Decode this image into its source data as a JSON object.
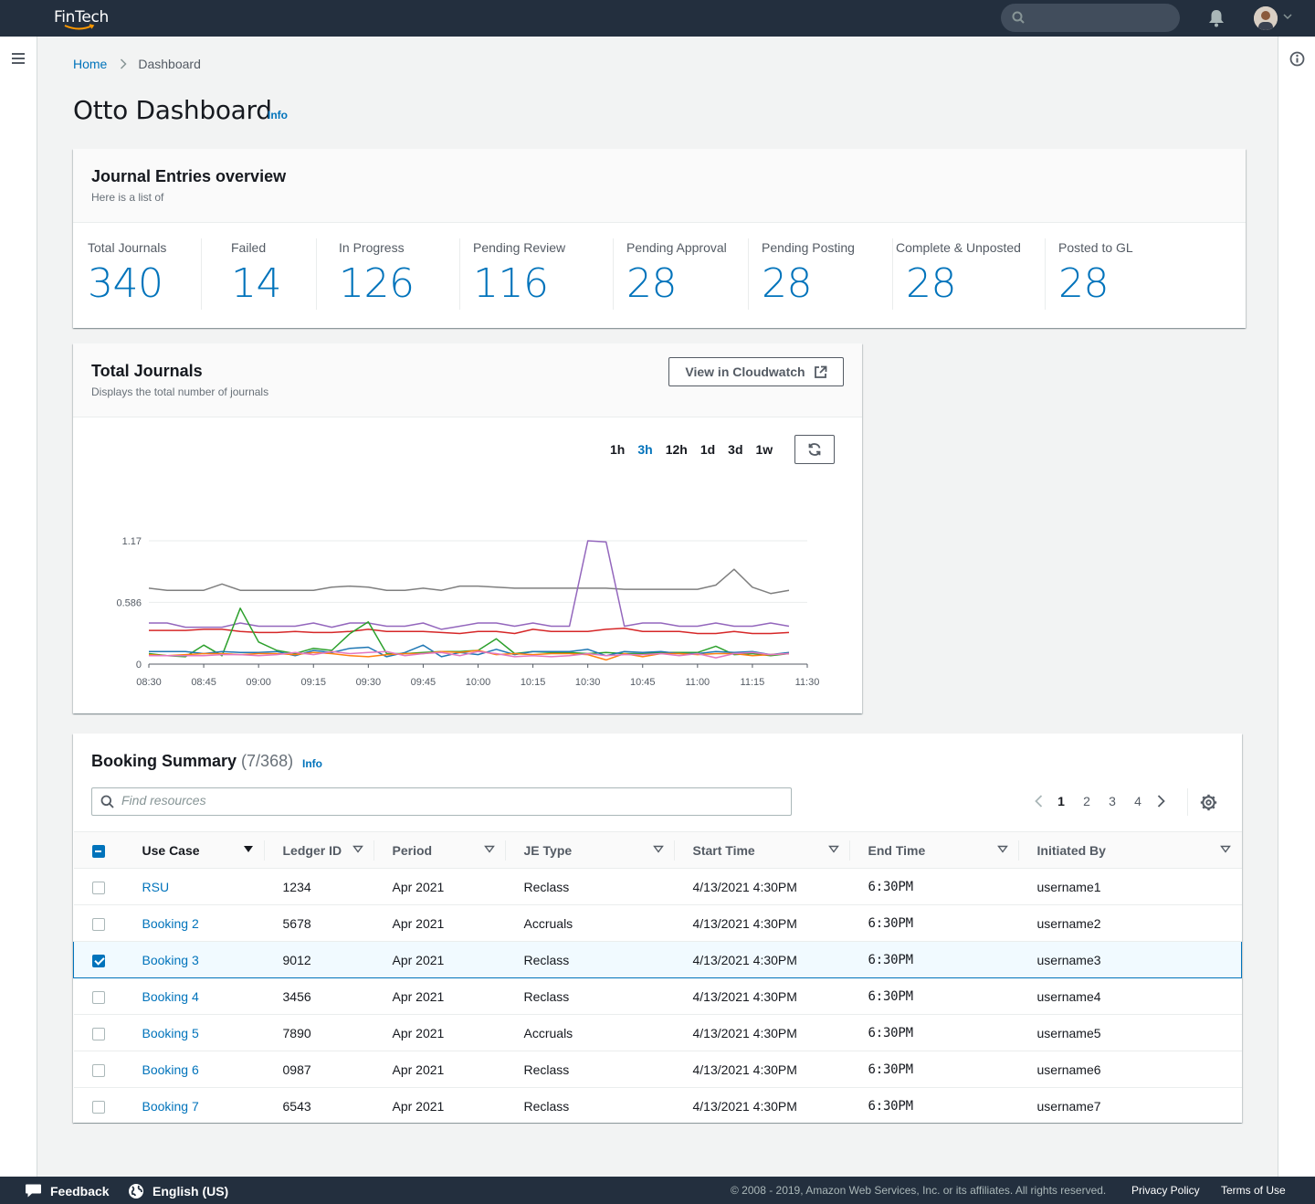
{
  "app": {
    "logo": "FinTech"
  },
  "breadcrumb": {
    "home": "Home",
    "current": "Dashboard"
  },
  "page": {
    "title": "Otto Dashboard",
    "info": "Info"
  },
  "overview": {
    "title": "Journal Entries overview",
    "description": "Here is a list of",
    "stats": [
      {
        "label": "Total Journals",
        "value": "340"
      },
      {
        "label": "Failed",
        "value": "14"
      },
      {
        "label": "In Progress",
        "value": "126"
      },
      {
        "label": "Pending Review",
        "value": "116"
      },
      {
        "label": "Pending Approval",
        "value": "28"
      },
      {
        "label": "Pending Posting",
        "value": "28"
      },
      {
        "label": "Complete & Unposted",
        "value": "28"
      },
      {
        "label": "Posted to GL",
        "value": "28"
      }
    ]
  },
  "chart_card": {
    "title": "Total Journals",
    "description": "Displays the total number of journals",
    "cloudwatch_button": "View in Cloudwatch",
    "ranges": [
      "1h",
      "3h",
      "12h",
      "1d",
      "3d",
      "1w"
    ],
    "active_range": "3h"
  },
  "chart_data": {
    "type": "line",
    "x": [
      "08:30",
      "08:35",
      "08:40",
      "08:45",
      "08:50",
      "08:55",
      "09:00",
      "09:05",
      "09:10",
      "09:15",
      "09:20",
      "09:25",
      "09:30",
      "09:35",
      "09:40",
      "09:45",
      "09:50",
      "09:55",
      "10:00",
      "10:05",
      "10:10",
      "10:15",
      "10:20",
      "10:25",
      "10:30",
      "10:35",
      "10:40",
      "10:45",
      "10:50",
      "10:55",
      "11:00",
      "11:05",
      "11:10",
      "11:15",
      "11:20",
      "11:25"
    ],
    "xticks": [
      "08:30",
      "08:45",
      "09:00",
      "09:15",
      "09:30",
      "09:45",
      "10:00",
      "10:15",
      "10:30",
      "10:45",
      "11:00",
      "11:15",
      "11:30"
    ],
    "yticks": [
      "0",
      "0.586",
      "1.17"
    ],
    "ylim": [
      0,
      1.17
    ],
    "grid": true,
    "series": [
      {
        "color": "#7f7f7f",
        "values": [
          0.72,
          0.7,
          0.7,
          0.7,
          0.76,
          0.7,
          0.7,
          0.7,
          0.7,
          0.7,
          0.73,
          0.74,
          0.73,
          0.7,
          0.7,
          0.72,
          0.7,
          0.74,
          0.74,
          0.73,
          0.72,
          0.72,
          0.72,
          0.72,
          0.72,
          0.72,
          0.71,
          0.71,
          0.71,
          0.71,
          0.71,
          0.75,
          0.9,
          0.73,
          0.67,
          0.7
        ]
      },
      {
        "color": "#9467bd",
        "values": [
          0.39,
          0.39,
          0.35,
          0.35,
          0.35,
          0.39,
          0.36,
          0.36,
          0.36,
          0.39,
          0.35,
          0.39,
          0.39,
          0.36,
          0.36,
          0.39,
          0.33,
          0.36,
          0.39,
          0.39,
          0.36,
          0.39,
          0.36,
          0.36,
          1.17,
          1.16,
          0.36,
          0.39,
          0.39,
          0.36,
          0.36,
          0.39,
          0.36,
          0.36,
          0.39,
          0.36
        ]
      },
      {
        "color": "#d62728",
        "values": [
          0.32,
          0.32,
          0.32,
          0.33,
          0.33,
          0.31,
          0.3,
          0.3,
          0.31,
          0.3,
          0.3,
          0.31,
          0.33,
          0.31,
          0.31,
          0.31,
          0.3,
          0.29,
          0.31,
          0.31,
          0.29,
          0.33,
          0.31,
          0.31,
          0.31,
          0.33,
          0.34,
          0.31,
          0.31,
          0.31,
          0.29,
          0.29,
          0.31,
          0.29,
          0.29,
          0.3
        ]
      },
      {
        "color": "#2ca02c",
        "values": [
          0.1,
          0.08,
          0.07,
          0.18,
          0.08,
          0.53,
          0.21,
          0.13,
          0.1,
          0.15,
          0.13,
          0.29,
          0.4,
          0.1,
          0.1,
          0.11,
          0.12,
          0.12,
          0.13,
          0.24,
          0.1,
          0.12,
          0.11,
          0.11,
          0.1,
          0.11,
          0.1,
          0.1,
          0.11,
          0.11,
          0.11,
          0.17,
          0.09,
          0.1,
          0.08,
          0.1
        ]
      },
      {
        "color": "#1f77b4",
        "values": [
          0.12,
          0.12,
          0.12,
          0.1,
          0.12,
          0.11,
          0.11,
          0.12,
          0.08,
          0.13,
          0.11,
          0.15,
          0.16,
          0.07,
          0.11,
          0.18,
          0.07,
          0.11,
          0.09,
          0.14,
          0.09,
          0.12,
          0.12,
          0.12,
          0.14,
          0.08,
          0.12,
          0.11,
          0.12,
          0.1,
          0.1,
          0.12,
          0.11,
          0.12,
          0.09,
          0.11
        ]
      },
      {
        "color": "#ff7f0e",
        "values": [
          0.09,
          0.08,
          0.09,
          0.1,
          0.1,
          0.09,
          0.1,
          0.1,
          0.09,
          0.11,
          0.1,
          0.08,
          0.07,
          0.09,
          0.1,
          0.1,
          0.12,
          0.11,
          0.13,
          0.09,
          0.1,
          0.09,
          0.1,
          0.1,
          0.09,
          0.04,
          0.1,
          0.07,
          0.1,
          0.1,
          0.09,
          0.1,
          0.1,
          0.08,
          0.09,
          0.1
        ]
      },
      {
        "color": "#e377c2",
        "values": [
          0.08,
          0.08,
          0.08,
          0.08,
          0.09,
          0.09,
          0.08,
          0.09,
          0.11,
          0.09,
          0.12,
          0.1,
          0.11,
          0.12,
          0.08,
          0.1,
          0.11,
          0.08,
          0.12,
          0.1,
          0.07,
          0.08,
          0.07,
          0.08,
          0.1,
          0.08,
          0.09,
          0.09,
          0.1,
          0.08,
          0.1,
          0.06,
          0.1,
          0.11,
          0.09,
          0.1
        ]
      }
    ]
  },
  "table": {
    "title": "Booking Summary",
    "count": "(7/368)",
    "info": "Info",
    "search_placeholder": "Find resources",
    "pages": [
      "1",
      "2",
      "3",
      "4"
    ],
    "columns": [
      "Use Case",
      "Ledger ID",
      "Period",
      "JE Type",
      "Start Time",
      "End Time",
      "Initiated By"
    ],
    "rows": [
      {
        "use_case": "RSU",
        "ledger": "1234",
        "period": "Apr 2021",
        "je_type": "Reclass",
        "start": "4/13/2021 4:30PM",
        "end": "6:30PM",
        "user": "username1",
        "selected": false
      },
      {
        "use_case": "Booking 2",
        "ledger": "5678",
        "period": "Apr 2021",
        "je_type": "Accruals",
        "start": "4/13/2021 4:30PM",
        "end": "6:30PM",
        "user": "username2",
        "selected": false
      },
      {
        "use_case": "Booking 3",
        "ledger": "9012",
        "period": "Apr 2021",
        "je_type": "Reclass",
        "start": "4/13/2021 4:30PM",
        "end": "6:30PM",
        "user": "username3",
        "selected": true
      },
      {
        "use_case": "Booking 4",
        "ledger": "3456",
        "period": "Apr 2021",
        "je_type": "Reclass",
        "start": "4/13/2021 4:30PM",
        "end": "6:30PM",
        "user": "username4",
        "selected": false
      },
      {
        "use_case": "Booking 5",
        "ledger": "7890",
        "period": "Apr 2021",
        "je_type": "Accruals",
        "start": "4/13/2021 4:30PM",
        "end": "6:30PM",
        "user": "username5",
        "selected": false
      },
      {
        "use_case": "Booking 6",
        "ledger": "0987",
        "period": "Apr 2021",
        "je_type": "Reclass",
        "start": "4/13/2021 4:30PM",
        "end": "6:30PM",
        "user": "username6",
        "selected": false
      },
      {
        "use_case": "Booking 7",
        "ledger": "6543",
        "period": "Apr 2021",
        "je_type": "Reclass",
        "start": "4/13/2021 4:30PM",
        "end": "6:30PM",
        "user": "username7",
        "selected": false
      }
    ]
  },
  "footer": {
    "feedback": "Feedback",
    "language": "English (US)",
    "copyright": "© 2008 - 2019, Amazon Web Services, Inc. or its affiliates. All rights reserved.",
    "privacy": "Privacy Policy",
    "terms": "Terms of Use"
  },
  "icons": [
    "search-icon",
    "bell-icon",
    "avatar",
    "chevron-down-icon",
    "menu-icon",
    "info-circle-icon",
    "chevron-right-icon",
    "external-link-icon",
    "refresh-icon",
    "chevron-left-icon",
    "gear-icon",
    "caret-down-icon",
    "feedback-icon",
    "globe-icon"
  ]
}
